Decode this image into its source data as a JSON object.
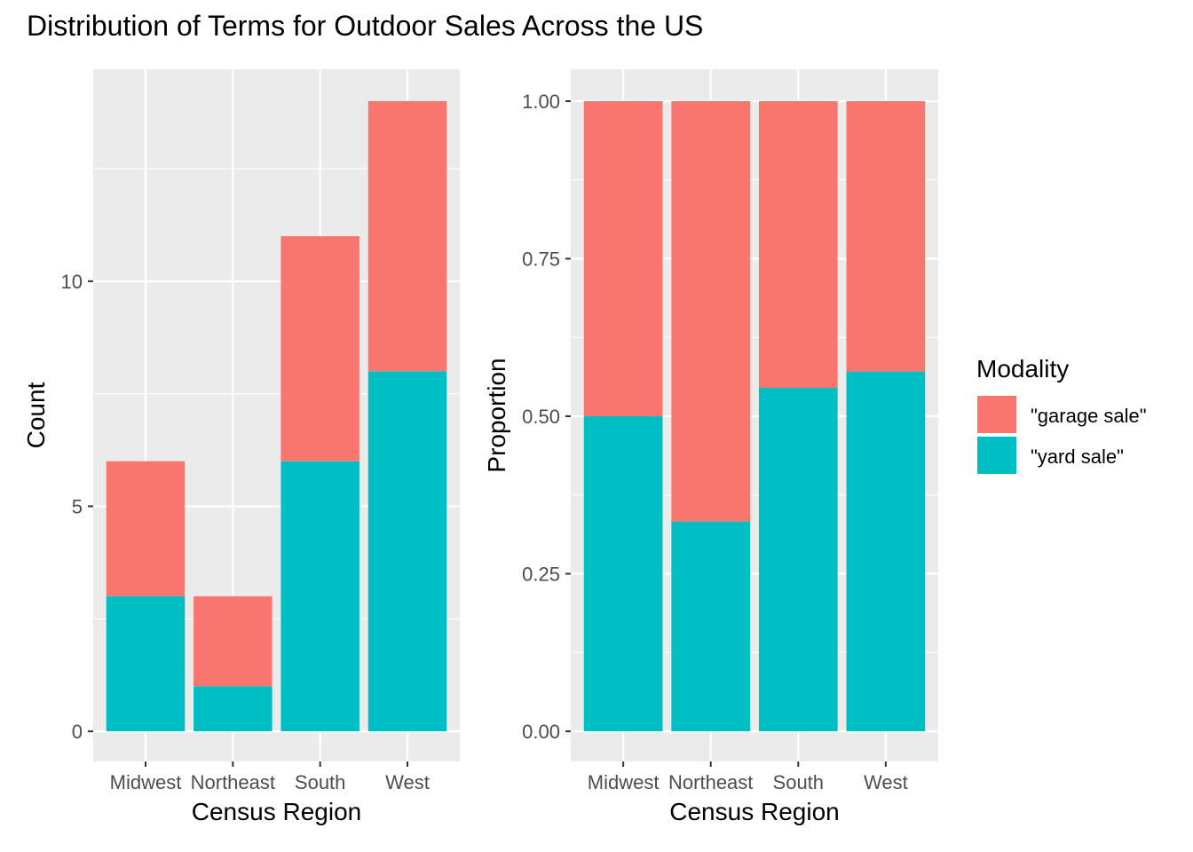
{
  "title": "Distribution of Terms for Outdoor Sales Across the US",
  "legend": {
    "title": "Modality",
    "items": [
      {
        "label": "\"garage sale\"",
        "color": "#F8766D"
      },
      {
        "label": "\"yard sale\"",
        "color": "#00BFC4"
      }
    ]
  },
  "chart_data": [
    {
      "type": "bar",
      "stacked": true,
      "categories": [
        "Midwest",
        "Northeast",
        "South",
        "West"
      ],
      "series": [
        {
          "name": "\"garage sale\"",
          "values": [
            3,
            2,
            5,
            6
          ]
        },
        {
          "name": "\"yard sale\"",
          "values": [
            3,
            1,
            6,
            8
          ]
        }
      ],
      "xlabel": "Census Region",
      "ylabel": "Count",
      "ylim": [
        0,
        14
      ],
      "yticks": [
        "0",
        "5",
        "10"
      ],
      "ytick_values": [
        0,
        5,
        10
      ],
      "grid": true
    },
    {
      "type": "bar",
      "stacked": true,
      "normalized": true,
      "categories": [
        "Midwest",
        "Northeast",
        "South",
        "West"
      ],
      "series": [
        {
          "name": "\"garage sale\"",
          "values": [
            0.5,
            0.667,
            0.455,
            0.429
          ]
        },
        {
          "name": "\"yard sale\"",
          "values": [
            0.5,
            0.333,
            0.545,
            0.571
          ]
        }
      ],
      "xlabel": "Census Region",
      "ylabel": "Proportion",
      "ylim": [
        0,
        1
      ],
      "yticks": [
        "0.00",
        "0.25",
        "0.50",
        "0.75",
        "1.00"
      ],
      "ytick_values": [
        0,
        0.25,
        0.5,
        0.75,
        1.0
      ],
      "grid": true
    }
  ]
}
